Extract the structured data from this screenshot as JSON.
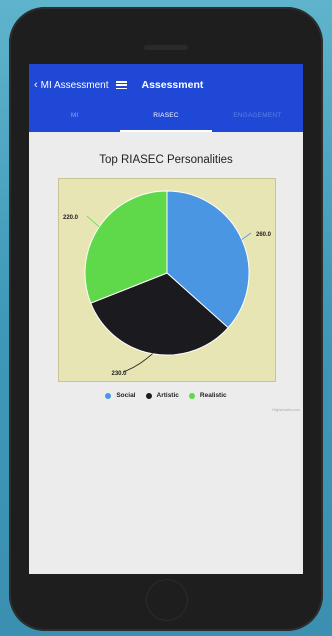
{
  "header": {
    "back_label": "MI Assessment",
    "title": "Assessment"
  },
  "tabs": [
    {
      "label": "MI",
      "active": false
    },
    {
      "label": "RIASEC",
      "active": true
    },
    {
      "label": "ENGAGEMENT",
      "active": false
    }
  ],
  "colors": {
    "appbar": "#1f48d6",
    "social": "#4a96e2",
    "artistic": "#1b1b1f",
    "realistic": "#5fd84a",
    "plot_bg": "#e8e5b5"
  },
  "credit": "Highcharts.com",
  "chart_data": {
    "type": "pie",
    "title": "Top RIASEC Personalities",
    "legend_position": "bottom",
    "categories": [
      "Social",
      "Artistic",
      "Realistic"
    ],
    "values": [
      260.0,
      230.0,
      220.0
    ],
    "value_labels": [
      "260.0",
      "230.0",
      "220.0"
    ]
  }
}
